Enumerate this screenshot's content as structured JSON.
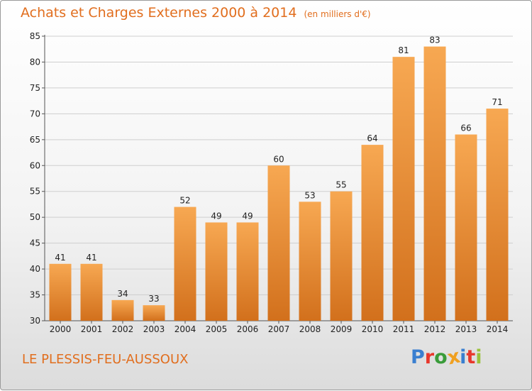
{
  "header": {
    "title": "Achats et Charges Externes 2000 à 2014",
    "unit": "(en milliers d'€)"
  },
  "footer": {
    "city": "LE PLESSIS-FEU-AUSSOUX",
    "logo_letters": [
      "P",
      "r",
      "o",
      "x",
      "i",
      "t",
      "i"
    ],
    "logo_colors": [
      "#3a7fd0",
      "#e8382c",
      "#3a9c3a",
      "#f0a020",
      "#3a7fd0",
      "#e8382c",
      "#9bc23c"
    ]
  },
  "colors": {
    "title": "#e16e1e",
    "bar_light": "#f6a650",
    "bar_dark": "#d4741f",
    "grid": "#cfcfcf"
  },
  "chart_data": {
    "type": "bar",
    "title": "Achats et Charges Externes 2000 à 2014",
    "categories": [
      "2000",
      "2001",
      "2002",
      "2003",
      "2004",
      "2005",
      "2006",
      "2007",
      "2008",
      "2009",
      "2010",
      "2011",
      "2012",
      "2013",
      "2014"
    ],
    "values": [
      41,
      41,
      34,
      33,
      52,
      49,
      49,
      60,
      53,
      55,
      64,
      81,
      83,
      66,
      71
    ],
    "ylim": [
      30,
      85
    ],
    "yticks": [
      30,
      35,
      40,
      45,
      50,
      55,
      60,
      65,
      70,
      75,
      80,
      85
    ],
    "grid": true,
    "data_labels": true
  }
}
